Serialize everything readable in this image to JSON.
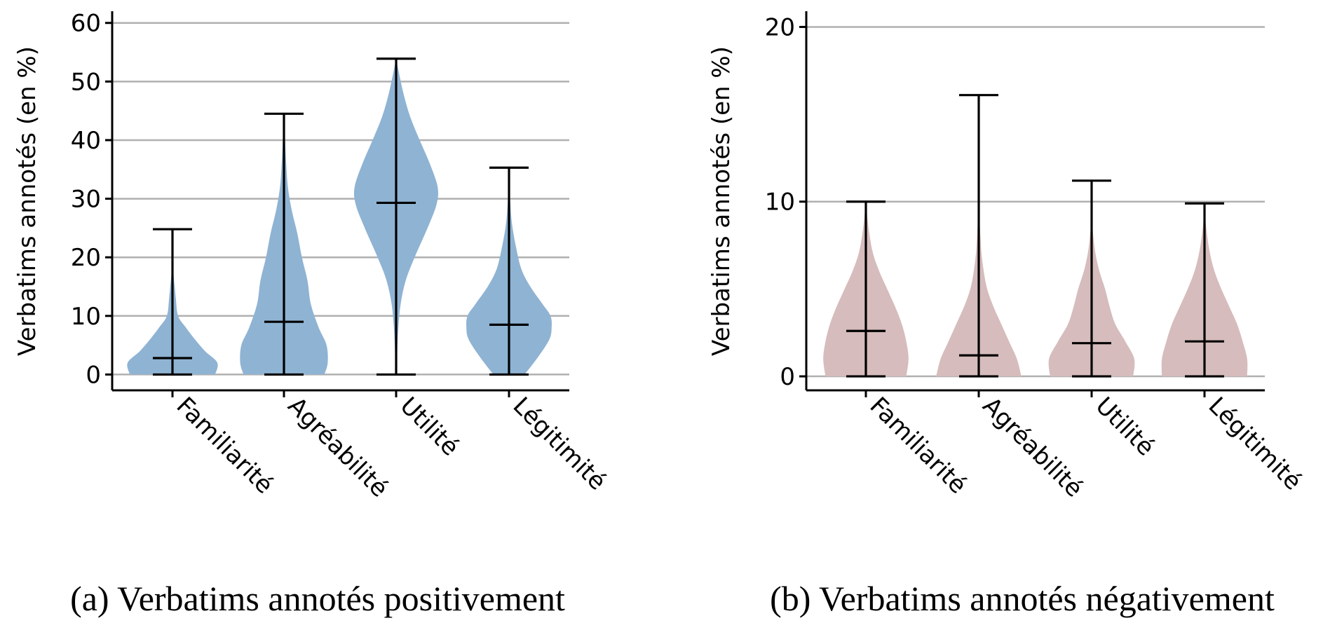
{
  "chart_data": [
    {
      "type": "violin",
      "caption": "(a) Verbatims annotés positivement",
      "ylabel": "Verbatims annotés (en %)",
      "categories": [
        "Familiarité",
        "Agréabilité",
        "Utilité",
        "Légitimité"
      ],
      "ylim": [
        -2.7,
        62
      ],
      "yticks": [
        "0",
        "10",
        "20",
        "30",
        "40",
        "50",
        "60"
      ],
      "ytick_values": [
        0,
        10,
        20,
        30,
        40,
        50,
        60
      ],
      "grid": "horizontal",
      "color": "#8fb3d3",
      "series": [
        {
          "min": 0,
          "median": 2.8,
          "max": 24.8,
          "density": [
            [
              0,
              0.76
            ],
            [
              2,
              0.8
            ],
            [
              4,
              0.58
            ],
            [
              6,
              0.4
            ],
            [
              8,
              0.24
            ],
            [
              10,
              0.1
            ],
            [
              13,
              0.06
            ],
            [
              15,
              0.04
            ],
            [
              17,
              0.02
            ],
            [
              20,
              0.01
            ],
            [
              22,
              0.004
            ],
            [
              24.8,
              0
            ]
          ]
        },
        {
          "min": 0,
          "median": 9.0,
          "max": 44.5,
          "density": [
            [
              0,
              0.72
            ],
            [
              2,
              0.78
            ],
            [
              5,
              0.76
            ],
            [
              8,
              0.62
            ],
            [
              12,
              0.48
            ],
            [
              16,
              0.42
            ],
            [
              20,
              0.32
            ],
            [
              24,
              0.24
            ],
            [
              28,
              0.14
            ],
            [
              32,
              0.07
            ],
            [
              36,
              0.04
            ],
            [
              40,
              0.02
            ],
            [
              44.5,
              0
            ]
          ]
        },
        {
          "min": 0,
          "median": 29.3,
          "max": 53.9,
          "density": [
            [
              0,
              0.01
            ],
            [
              4,
              0.02
            ],
            [
              8,
              0.04
            ],
            [
              12,
              0.08
            ],
            [
              16,
              0.17
            ],
            [
              20,
              0.33
            ],
            [
              25,
              0.56
            ],
            [
              29,
              0.72
            ],
            [
              32,
              0.74
            ],
            [
              36,
              0.6
            ],
            [
              40,
              0.42
            ],
            [
              44,
              0.25
            ],
            [
              48,
              0.13
            ],
            [
              52,
              0.04
            ],
            [
              53.9,
              0
            ]
          ]
        },
        {
          "min": 0,
          "median": 8.5,
          "max": 35.3,
          "density": [
            [
              0,
              0.28
            ],
            [
              3,
              0.52
            ],
            [
              6,
              0.72
            ],
            [
              8,
              0.76
            ],
            [
              10,
              0.74
            ],
            [
              12,
              0.6
            ],
            [
              15,
              0.38
            ],
            [
              18,
              0.22
            ],
            [
              22,
              0.12
            ],
            [
              26,
              0.05
            ],
            [
              30,
              0.02
            ],
            [
              35.3,
              0
            ]
          ]
        }
      ]
    },
    {
      "type": "violin",
      "caption": "(b) Verbatims annotés négativement",
      "ylabel": "Verbatims annotés (en %)",
      "categories": [
        "Familiarité",
        "Agréabilité",
        "Utilité",
        "Légitimité"
      ],
      "ylim": [
        -0.8,
        20.9
      ],
      "yticks": [
        "0",
        "10",
        "20"
      ],
      "ytick_values": [
        0,
        10,
        20
      ],
      "grid": "horizontal",
      "color": "#d6bcbc",
      "series": [
        {
          "min": 0,
          "median": 2.6,
          "max": 10.0,
          "density": [
            [
              0,
              0.72
            ],
            [
              1,
              0.76
            ],
            [
              2,
              0.72
            ],
            [
              3,
              0.64
            ],
            [
              4,
              0.52
            ],
            [
              5,
              0.38
            ],
            [
              6,
              0.24
            ],
            [
              7,
              0.13
            ],
            [
              8,
              0.07
            ],
            [
              9,
              0.03
            ],
            [
              10,
              0
            ]
          ]
        },
        {
          "min": 0,
          "median": 1.2,
          "max": 16.1,
          "density": [
            [
              0,
              0.76
            ],
            [
              1,
              0.68
            ],
            [
              2,
              0.54
            ],
            [
              3,
              0.4
            ],
            [
              4,
              0.26
            ],
            [
              5,
              0.15
            ],
            [
              6,
              0.09
            ],
            [
              7,
              0.05
            ],
            [
              8,
              0.03
            ],
            [
              9,
              0.015
            ],
            [
              10,
              0.005
            ],
            [
              16.1,
              0
            ]
          ]
        },
        {
          "min": 0,
          "median": 1.9,
          "max": 11.2,
          "density": [
            [
              0,
              0.74
            ],
            [
              1,
              0.76
            ],
            [
              2,
              0.6
            ],
            [
              3,
              0.42
            ],
            [
              4,
              0.32
            ],
            [
              5,
              0.24
            ],
            [
              6,
              0.14
            ],
            [
              7,
              0.07
            ],
            [
              8,
              0.03
            ],
            [
              9,
              0.01
            ],
            [
              11.2,
              0
            ]
          ]
        },
        {
          "min": 0,
          "median": 2.0,
          "max": 9.9,
          "density": [
            [
              0,
              0.76
            ],
            [
              1,
              0.76
            ],
            [
              2,
              0.68
            ],
            [
              3,
              0.58
            ],
            [
              4,
              0.44
            ],
            [
              5,
              0.3
            ],
            [
              6,
              0.18
            ],
            [
              7,
              0.1
            ],
            [
              8,
              0.05
            ],
            [
              9,
              0.015
            ],
            [
              9.9,
              0
            ]
          ]
        }
      ]
    }
  ]
}
